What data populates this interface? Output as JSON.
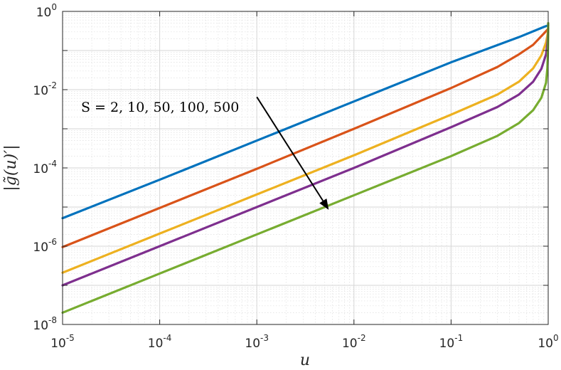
{
  "chart_data": {
    "type": "line",
    "xscale": "log",
    "yscale": "log",
    "xlim": [
      1e-05,
      1
    ],
    "ylim": [
      1e-08,
      1
    ],
    "grid": true,
    "minor_grid": true,
    "xlabel": "u",
    "ylabel": "|g̃(u)′|",
    "xticks": [
      {
        "base": "10",
        "exp": "-5"
      },
      {
        "base": "10",
        "exp": "-4"
      },
      {
        "base": "10",
        "exp": "-3"
      },
      {
        "base": "10",
        "exp": "-2"
      },
      {
        "base": "10",
        "exp": "-1"
      },
      {
        "base": "10",
        "exp": "0"
      }
    ],
    "yticks": [
      {
        "base": "10",
        "exp": "-8"
      },
      {
        "base": "10",
        "exp": "-6"
      },
      {
        "base": "10",
        "exp": "-4"
      },
      {
        "base": "10",
        "exp": "-2"
      },
      {
        "base": "10",
        "exp": "0"
      }
    ],
    "annotation": {
      "text": "S = 2, 10, 50, 100, 500",
      "arrow_from": [
        0.001,
        0.0065
      ],
      "arrow_to": [
        0.0055,
        8.5e-06
      ]
    },
    "series": [
      {
        "color": "#0072BD",
        "x": [
          1e-05,
          0.0001,
          0.001,
          0.01,
          0.1,
          0.5,
          0.9,
          1
        ],
        "y": [
          5.2e-06,
          5e-05,
          0.0005,
          0.005,
          0.05,
          0.22,
          0.4,
          0.44
        ]
      },
      {
        "color": "#D95319",
        "x": [
          1e-05,
          0.0001,
          0.001,
          0.01,
          0.1,
          0.3,
          0.5,
          0.7,
          0.9,
          0.97,
          1
        ],
        "y": [
          9.5e-07,
          9.5e-06,
          9.5e-05,
          0.001,
          0.011,
          0.038,
          0.08,
          0.14,
          0.27,
          0.33,
          0.36
        ]
      },
      {
        "color": "#EDB120",
        "x": [
          1e-05,
          0.0001,
          0.001,
          0.01,
          0.1,
          0.3,
          0.5,
          0.7,
          0.85,
          0.95,
          0.98,
          1
        ],
        "y": [
          2.1e-07,
          2.1e-06,
          2.1e-05,
          0.00021,
          0.0023,
          0.0075,
          0.016,
          0.035,
          0.075,
          0.16,
          0.24,
          0.33
        ]
      },
      {
        "color": "#7E2F8E",
        "x": [
          1e-05,
          0.0001,
          0.001,
          0.01,
          0.1,
          0.3,
          0.5,
          0.7,
          0.85,
          0.95,
          0.98,
          0.995,
          1
        ],
        "y": [
          1e-07,
          1e-06,
          1e-05,
          0.0001,
          0.0011,
          0.0036,
          0.0075,
          0.016,
          0.034,
          0.08,
          0.15,
          0.24,
          0.3
        ]
      },
      {
        "color": "#77AC30",
        "x": [
          1e-05,
          0.0001,
          0.001,
          0.01,
          0.1,
          0.3,
          0.5,
          0.7,
          0.85,
          0.95,
          0.98,
          0.99,
          0.997,
          1
        ],
        "y": [
          2e-08,
          2e-07,
          2e-06,
          2e-05,
          0.0002,
          0.00066,
          0.0014,
          0.003,
          0.0062,
          0.015,
          0.035,
          0.07,
          0.2,
          0.5
        ]
      }
    ]
  }
}
